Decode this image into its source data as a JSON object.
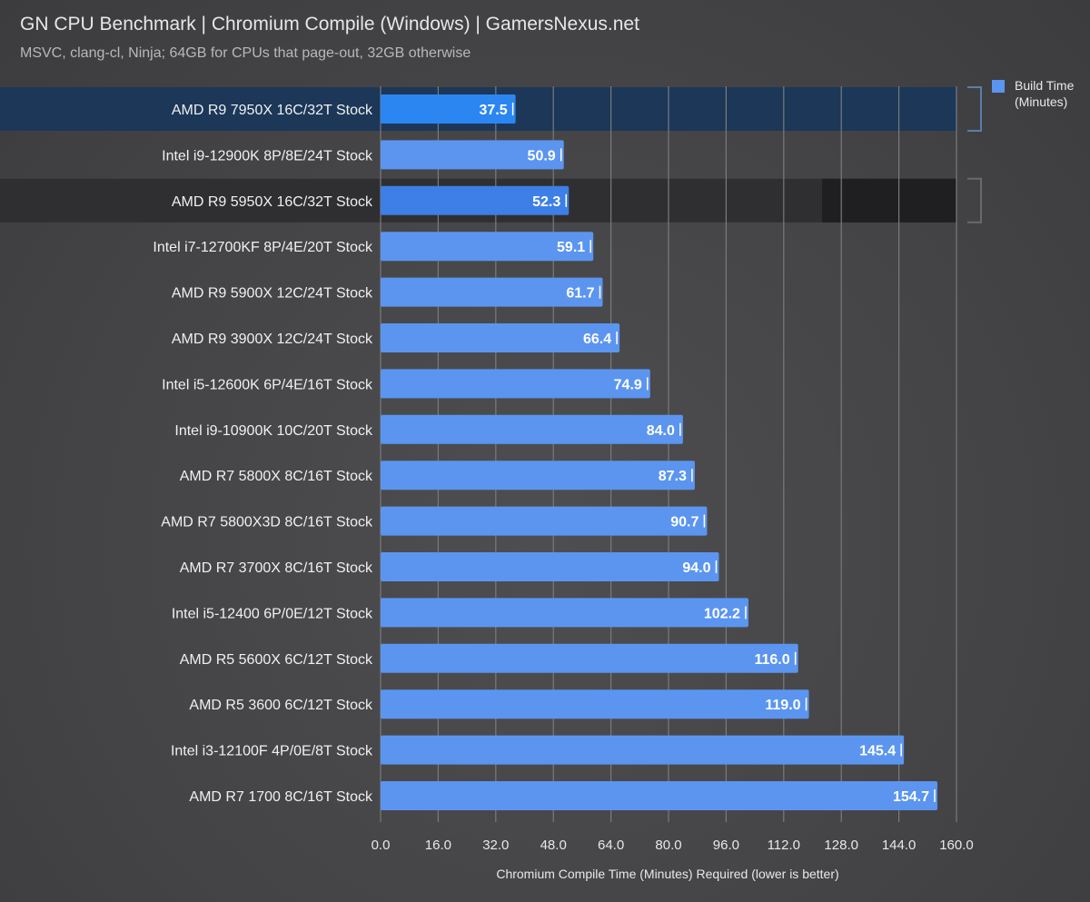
{
  "header": {
    "title": "GN CPU Benchmark | Chromium Compile (Windows) | GamersNexus.net",
    "subtitle": "MSVC, clang-cl, Ninja; 64GB for CPUs that page-out, 32GB otherwise"
  },
  "chart_data": {
    "type": "bar",
    "orientation": "horizontal",
    "categories": [
      "AMD R9 7950X 16C/32T Stock",
      "Intel i9-12900K 8P/8E/24T Stock",
      "AMD R9 5950X 16C/32T Stock",
      "Intel i7-12700KF 8P/4E/20T Stock",
      "AMD R9 5900X 12C/24T Stock",
      "AMD R9 3900X 12C/24T Stock",
      "Intel i5-12600K 6P/4E/16T Stock",
      "Intel i9-10900K 10C/20T Stock",
      "AMD R7 5800X 8C/16T Stock",
      "AMD R7 5800X3D 8C/16T Stock",
      "AMD R7 3700X 8C/16T Stock",
      "Intel i5-12400 6P/0E/12T Stock",
      "AMD R5 5600X 6C/12T Stock",
      "AMD R5 3600 6C/12T Stock",
      "Intel i3-12100F 4P/0E/8T Stock",
      "AMD R7 1700 8C/16T Stock"
    ],
    "series": [
      {
        "name": "Build Time (Minutes)",
        "values": [
          37.5,
          50.9,
          52.3,
          59.1,
          61.7,
          66.4,
          74.9,
          84.0,
          87.3,
          90.7,
          94.0,
          102.2,
          116.0,
          119.0,
          145.4,
          154.7
        ],
        "value_labels": [
          "37.5",
          "50.9",
          "52.3",
          "59.1",
          "61.7",
          "66.4",
          "74.9",
          "84.0",
          "87.3",
          "90.7",
          "94.0",
          "102.2",
          "116.0",
          "119.0",
          "145.4",
          "154.7"
        ]
      }
    ],
    "highlighted": {
      "AMD R9 7950X 16C/32T Stock": "blue",
      "AMD R9 5950X 16C/32T Stock": "dark"
    },
    "xlabel": "Chromium Compile Time (Minutes) Required (lower is better)",
    "xlim": [
      0,
      160
    ],
    "xticks": [
      "0.0",
      "16.0",
      "32.0",
      "48.0",
      "64.0",
      "80.0",
      "96.0",
      "112.0",
      "128.0",
      "144.0",
      "160.0"
    ],
    "legend": {
      "position": "top-right",
      "label_line1": "Build Time",
      "label_line2": "(Minutes)"
    },
    "grid": true,
    "colors": {
      "bar": "#5b95f0",
      "bar_highlight": "#2c86f2",
      "bar_second": "#3d7fe6",
      "highlight_blue_row": "#1c3758",
      "highlight_dark_row": "#2f2f31",
      "gridline": "#7a7a7c"
    }
  }
}
